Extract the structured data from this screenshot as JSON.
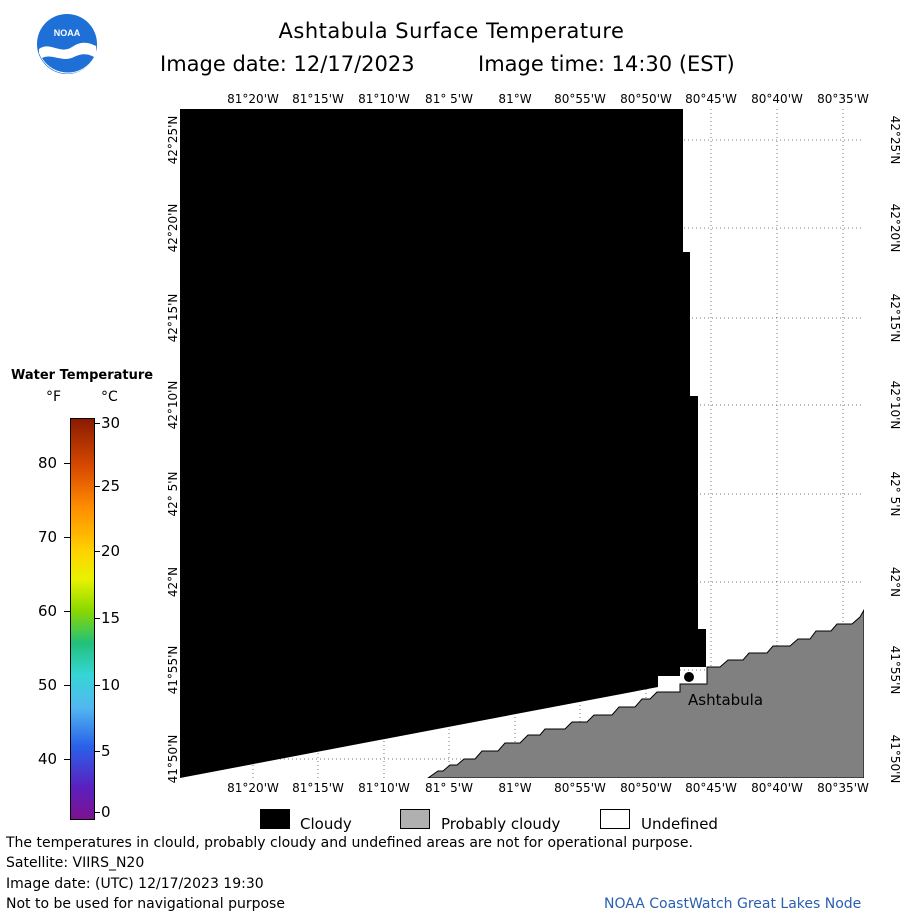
{
  "header": {
    "title": "Ashtabula Surface Temperature",
    "image_date_label": "Image date: 12/17/2023",
    "image_time_label": "Image time: 14:30 (EST)"
  },
  "logo": {
    "text": "NOAA",
    "colors": {
      "outer": "#1e6fd6",
      "inner": "#0a3a8c",
      "wave": "#ffffff"
    }
  },
  "map": {
    "colors": {
      "cloudy": "#000000",
      "probably_cloudy": "#808080",
      "undefined": "#ffffff",
      "grid": "#777777"
    },
    "lon_labels": [
      "81°20'W",
      "81°15'W",
      "81°10'W",
      "81° 5'W",
      "81°W",
      "80°55'W",
      "80°50'W",
      "80°45'W",
      "80°40'W",
      "80°35'W"
    ],
    "lat_labels": [
      "42°25'N",
      "42°20'N",
      "42°15'N",
      "42°10'N",
      "42° 5'N",
      "42°N",
      "41°55'N",
      "41°50'N"
    ],
    "city": {
      "name": "Ashtabula"
    }
  },
  "legend": {
    "title": "Water Temperature",
    "unit_f": "°F",
    "unit_c": "°C",
    "f_ticks": [
      "80",
      "70",
      "60",
      "50",
      "40"
    ],
    "c_ticks": [
      "30",
      "25",
      "20",
      "15",
      "10",
      "5",
      "0"
    ]
  },
  "key": {
    "cloudy": "Cloudy",
    "probably_cloudy": "Probably cloudy",
    "undefined": "Undefined"
  },
  "footer": {
    "disclaimer": "The temperatures in clould, probably cloudy and undefined areas are not for operational purpose.",
    "satellite": "Satellite: VIIRS_N20",
    "utc_date": "Image date: (UTC) 12/17/2023  19:30",
    "nav_warning": "Not to be used for navigational purpose",
    "credit": "NOAA CoastWatch Great Lakes Node"
  }
}
